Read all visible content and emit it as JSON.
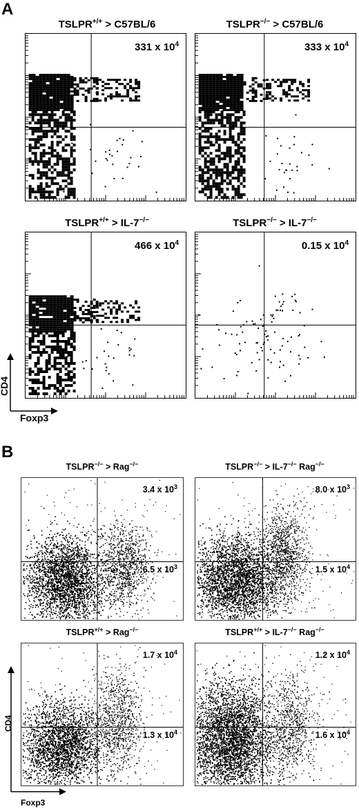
{
  "panel_a": {
    "letter": "A",
    "plots": [
      {
        "title_pre": "TSLPR",
        "title_sup": "+/+",
        "title_post": " > C57BL/6",
        "counts": [
          {
            "base": "331 x 10",
            "exp": "4"
          }
        ]
      },
      {
        "title_pre": "TSLPR",
        "title_sup": "−/−",
        "title_post": " > C57BL/6",
        "counts": [
          {
            "base": "333 x 10",
            "exp": "4"
          }
        ]
      },
      {
        "title_pre": "TSLPR",
        "title_sup": "+/+",
        "title_post": " > IL-7",
        "title_sup2": "−/−",
        "counts": [
          {
            "base": "466 x 10",
            "exp": "4"
          }
        ]
      },
      {
        "title_pre": "TSLPR",
        "title_sup": "−/−",
        "title_post": " > IL-7",
        "title_sup2": "−/−",
        "counts": [
          {
            "base": "0.15 x 10",
            "exp": "4"
          }
        ]
      }
    ],
    "ylabel": "CD4",
    "xlabel": "Foxp3"
  },
  "panel_b": {
    "letter": "B",
    "plots": [
      {
        "title_pre": "TSLPR",
        "title_sup": "−/−",
        "title_post": " > Rag",
        "title_sup2": "−/−",
        "counts": [
          {
            "base": "3.4 x 10",
            "exp": "3"
          },
          {
            "base": "6.5 x 10",
            "exp": "3"
          }
        ]
      },
      {
        "title_pre": "TSLPR",
        "title_sup": "−/−",
        "title_post": " > IL-7",
        "title_sup2": "−/−",
        "title_post2": " Rag",
        "title_sup3": "−/−",
        "counts": [
          {
            "base": "8.0 x 10",
            "exp": "3"
          },
          {
            "base": "1.5 x 10",
            "exp": "4"
          }
        ]
      },
      {
        "title_pre": "TSLPR",
        "title_sup": "+/+",
        "title_post": " > Rag",
        "title_sup2": "−/−",
        "counts": [
          {
            "base": "1.7 x 10",
            "exp": "4"
          },
          {
            "base": "1.3 x 10",
            "exp": "4"
          }
        ]
      },
      {
        "title_pre": "TSLPR",
        "title_sup": "+/+",
        "title_post": " > IL-7",
        "title_sup2": "−/−",
        "title_post2": " Rag",
        "title_sup3": "−/−",
        "counts": [
          {
            "base": "1.2 x 10",
            "exp": "4"
          },
          {
            "base": "1.6 x 10",
            "exp": "4"
          }
        ]
      }
    ],
    "ylabel": "CD4",
    "xlabel": "Foxp3"
  }
}
